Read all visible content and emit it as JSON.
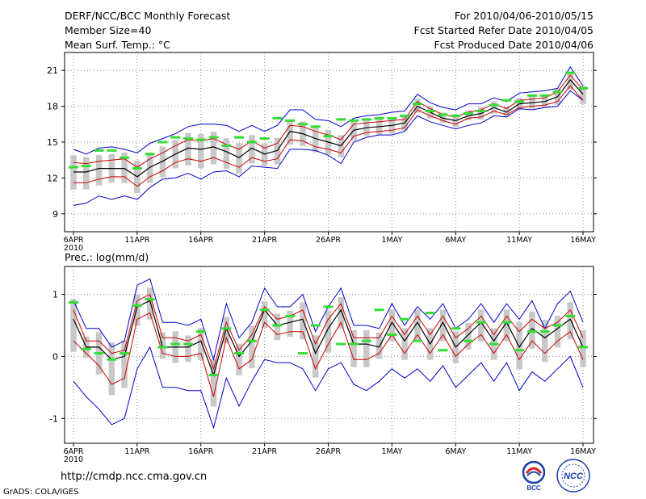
{
  "header": {
    "title": "DERF/NCC/BCC Monthly Forecast",
    "member_size": "Member Size=40",
    "variable": "Mean Surf. Temp.: °C",
    "period": "For 2010/04/06-2010/05/15",
    "started": "Fcst Started Refer Date 2010/04/05",
    "produced": "Fcst Produced Date 2010/04/06"
  },
  "footer": {
    "url": "http://cmdp.ncc.cma.gov.cn",
    "credit": "GrADS: COLA/IGES",
    "logo_left": "BCC",
    "logo_right": "NCC"
  },
  "colors": {
    "ensemble_mean": "#000000",
    "spread": "#cc0000",
    "extremes": "#0000cc",
    "observed": "#33dd33",
    "boxes": "#c8c8c8",
    "grid": "#888888"
  },
  "chart_data": [
    {
      "type": "line",
      "title": "Mean Surf. Temp.: °C",
      "ylabel": "°C",
      "ylim": [
        7.5,
        22.5
      ],
      "yticks": [
        9,
        12,
        15,
        18,
        21
      ],
      "xticks": [
        {
          "day": 0,
          "label": "6APR",
          "sub": "2010"
        },
        {
          "day": 5,
          "label": "11APR"
        },
        {
          "day": 10,
          "label": "16APR"
        },
        {
          "day": 15,
          "label": "21APR"
        },
        {
          "day": 20,
          "label": "26APR"
        },
        {
          "day": 25,
          "label": "1MAY"
        },
        {
          "day": 30,
          "label": "6MAY"
        },
        {
          "day": 35,
          "label": "11MAY"
        },
        {
          "day": 40,
          "label": "16MAY"
        }
      ],
      "series": [
        {
          "name": "max",
          "values": [
            14.4,
            14.0,
            14.5,
            14.6,
            14.4,
            14.1,
            14.9,
            15.3,
            15.7,
            16.3,
            16.5,
            16.5,
            16.4,
            15.9,
            16.4,
            15.9,
            16.4,
            17.7,
            17.7,
            16.9,
            16.8,
            16.3,
            17.0,
            17.2,
            17.3,
            17.5,
            17.6,
            19.0,
            18.3,
            17.9,
            17.7,
            18.2,
            18.2,
            18.7,
            18.4,
            19.1,
            19.2,
            19.3,
            19.5,
            21.3,
            19.7
          ]
        },
        {
          "name": "upper",
          "values": [
            13.3,
            13.2,
            13.4,
            13.5,
            13.6,
            12.9,
            13.6,
            14.1,
            14.7,
            15.2,
            15.1,
            15.3,
            14.8,
            14.4,
            15.1,
            14.5,
            14.9,
            16.4,
            16.3,
            15.9,
            15.6,
            15.2,
            16.5,
            16.6,
            16.7,
            16.8,
            16.9,
            18.4,
            17.8,
            17.3,
            17.1,
            17.5,
            17.7,
            18.2,
            17.8,
            18.5,
            18.6,
            18.7,
            19.2,
            20.6,
            19.4
          ]
        },
        {
          "name": "mean",
          "values": [
            12.5,
            12.5,
            12.8,
            12.8,
            12.8,
            12.1,
            12.9,
            13.4,
            14.0,
            14.5,
            14.4,
            14.6,
            14.2,
            13.7,
            14.5,
            14.0,
            14.3,
            15.9,
            15.7,
            15.3,
            15.0,
            14.7,
            16.0,
            16.2,
            16.3,
            16.4,
            16.6,
            18.0,
            17.5,
            17.0,
            16.8,
            17.2,
            17.4,
            17.9,
            17.5,
            18.2,
            18.3,
            18.4,
            18.8,
            20.2,
            19.0
          ]
        },
        {
          "name": "lower",
          "values": [
            11.6,
            11.6,
            11.9,
            12.1,
            12.1,
            11.3,
            12.1,
            12.6,
            13.3,
            13.6,
            13.4,
            13.7,
            13.3,
            12.9,
            13.7,
            13.4,
            13.6,
            15.2,
            15.1,
            14.6,
            14.4,
            14.1,
            15.5,
            15.8,
            15.9,
            16.0,
            16.2,
            17.7,
            17.2,
            16.8,
            16.5,
            17.0,
            17.1,
            17.6,
            17.3,
            17.9,
            18.0,
            18.1,
            18.4,
            19.7,
            18.5
          ]
        },
        {
          "name": "min",
          "values": [
            9.7,
            9.9,
            10.5,
            10.2,
            10.5,
            10.2,
            11.2,
            11.9,
            12.0,
            12.4,
            11.9,
            12.5,
            12.6,
            12.1,
            13.0,
            12.9,
            12.8,
            14.4,
            14.4,
            14.3,
            13.9,
            13.2,
            15.0,
            15.4,
            15.6,
            15.6,
            15.9,
            17.2,
            16.7,
            16.4,
            16.1,
            16.4,
            16.6,
            17.2,
            17.1,
            17.8,
            17.7,
            17.9,
            18.0,
            19.3,
            18.5
          ]
        },
        {
          "name": "observed",
          "values": [
            12.9,
            13.0,
            14.3,
            14.3,
            13.7,
            12.8,
            14.0,
            15.0,
            15.4,
            15.3,
            15.2,
            15.4,
            14.7,
            15.4,
            15.0,
            15.3,
            17.0,
            16.8,
            16.5,
            16.3,
            15.5,
            16.9,
            16.8,
            16.9,
            17.0,
            17.0,
            17.2,
            18.2,
            17.6,
            17.3,
            17.2,
            17.4,
            17.6,
            18.1,
            18.5,
            18.4,
            18.9,
            18.9,
            19.2,
            20.8,
            19.5
          ]
        }
      ]
    },
    {
      "type": "line",
      "title": "Prec.: log(mm/d)",
      "ylabel": "log(mm/d)",
      "ylim": [
        -1.4,
        1.45
      ],
      "yticks": [
        -1,
        0,
        1
      ],
      "xticks": [
        {
          "day": 0,
          "label": "6APR",
          "sub": "2010"
        },
        {
          "day": 5,
          "label": "11APR"
        },
        {
          "day": 10,
          "label": "16APR"
        },
        {
          "day": 15,
          "label": "21APR"
        },
        {
          "day": 20,
          "label": "26APR"
        },
        {
          "day": 25,
          "label": "1MAY"
        },
        {
          "day": 30,
          "label": "6MAY"
        },
        {
          "day": 35,
          "label": "11MAY"
        },
        {
          "day": 40,
          "label": "16MAY"
        }
      ],
      "series": [
        {
          "name": "max",
          "values": [
            0.9,
            0.45,
            0.45,
            0.15,
            0.25,
            1.15,
            1.25,
            0.55,
            0.55,
            0.5,
            0.6,
            -0.05,
            0.85,
            0.3,
            0.55,
            1.1,
            0.8,
            0.8,
            1.0,
            0.4,
            0.8,
            1.1,
            0.5,
            0.5,
            0.45,
            0.85,
            0.5,
            0.8,
            0.6,
            0.85,
            0.45,
            0.6,
            0.85,
            0.55,
            0.85,
            0.6,
            0.9,
            0.45,
            0.85,
            1.05,
            0.55
          ]
        },
        {
          "name": "upper",
          "values": [
            0.75,
            0.25,
            0.25,
            0.05,
            0.1,
            0.9,
            1.0,
            0.3,
            0.3,
            0.25,
            0.35,
            -0.2,
            0.55,
            0.1,
            0.35,
            0.8,
            0.6,
            0.65,
            0.75,
            0.2,
            0.6,
            0.85,
            0.3,
            0.3,
            0.3,
            0.65,
            0.35,
            0.65,
            0.35,
            0.65,
            0.3,
            0.45,
            0.65,
            0.35,
            0.65,
            0.4,
            0.6,
            0.45,
            0.55,
            0.75,
            0.3
          ]
        },
        {
          "name": "mean",
          "values": [
            0.6,
            0.15,
            0.15,
            -0.05,
            0.0,
            0.8,
            0.9,
            0.15,
            0.15,
            0.15,
            0.25,
            -0.3,
            0.45,
            0.0,
            0.25,
            0.75,
            0.5,
            0.55,
            0.6,
            0.05,
            0.45,
            0.75,
            0.2,
            0.2,
            0.15,
            0.55,
            0.25,
            0.55,
            0.2,
            0.55,
            0.15,
            0.35,
            0.55,
            0.25,
            0.55,
            0.15,
            0.45,
            0.3,
            0.45,
            0.6,
            0.15
          ]
        },
        {
          "name": "lower",
          "values": [
            0.25,
            0.05,
            -0.15,
            -0.45,
            -0.35,
            0.6,
            0.7,
            0.05,
            0.0,
            0.0,
            0.05,
            -0.65,
            0.3,
            -0.2,
            -0.05,
            0.55,
            0.35,
            0.4,
            0.4,
            -0.2,
            0.2,
            0.55,
            -0.05,
            -0.05,
            0.05,
            0.35,
            0.05,
            0.35,
            0.05,
            0.35,
            0.0,
            0.2,
            0.35,
            0.05,
            0.35,
            -0.05,
            0.25,
            0.05,
            0.25,
            0.4,
            -0.05
          ]
        },
        {
          "name": "min",
          "values": [
            -0.4,
            -0.65,
            -0.85,
            -1.1,
            -1.0,
            -0.2,
            0.15,
            -0.5,
            -0.5,
            -0.55,
            -0.55,
            -1.15,
            -0.35,
            -0.8,
            -0.4,
            -0.05,
            -0.1,
            -0.1,
            -0.2,
            -0.55,
            -0.2,
            -0.1,
            -0.45,
            -0.55,
            -0.4,
            -0.2,
            -0.35,
            -0.2,
            -0.4,
            -0.15,
            -0.5,
            -0.3,
            -0.1,
            -0.4,
            -0.1,
            -0.55,
            -0.25,
            -0.4,
            -0.2,
            0.0,
            -0.5
          ]
        },
        {
          "name": "observed",
          "values": [
            0.87,
            0.12,
            0.05,
            -0.05,
            0.05,
            0.82,
            0.92,
            0.15,
            0.2,
            0.2,
            0.4,
            -0.3,
            0.45,
            0.05,
            0.25,
            0.75,
            0.5,
            0.65,
            0.05,
            0.5,
            0.8,
            0.2,
            0.2,
            0.25,
            0.75,
            0.35,
            0.6,
            0.25,
            0.7,
            0.1,
            0.45,
            0.25,
            0.55,
            0.2,
            0.55,
            0.1,
            0.4,
            0.4,
            0.5,
            0.65,
            0.15
          ]
        }
      ]
    }
  ]
}
